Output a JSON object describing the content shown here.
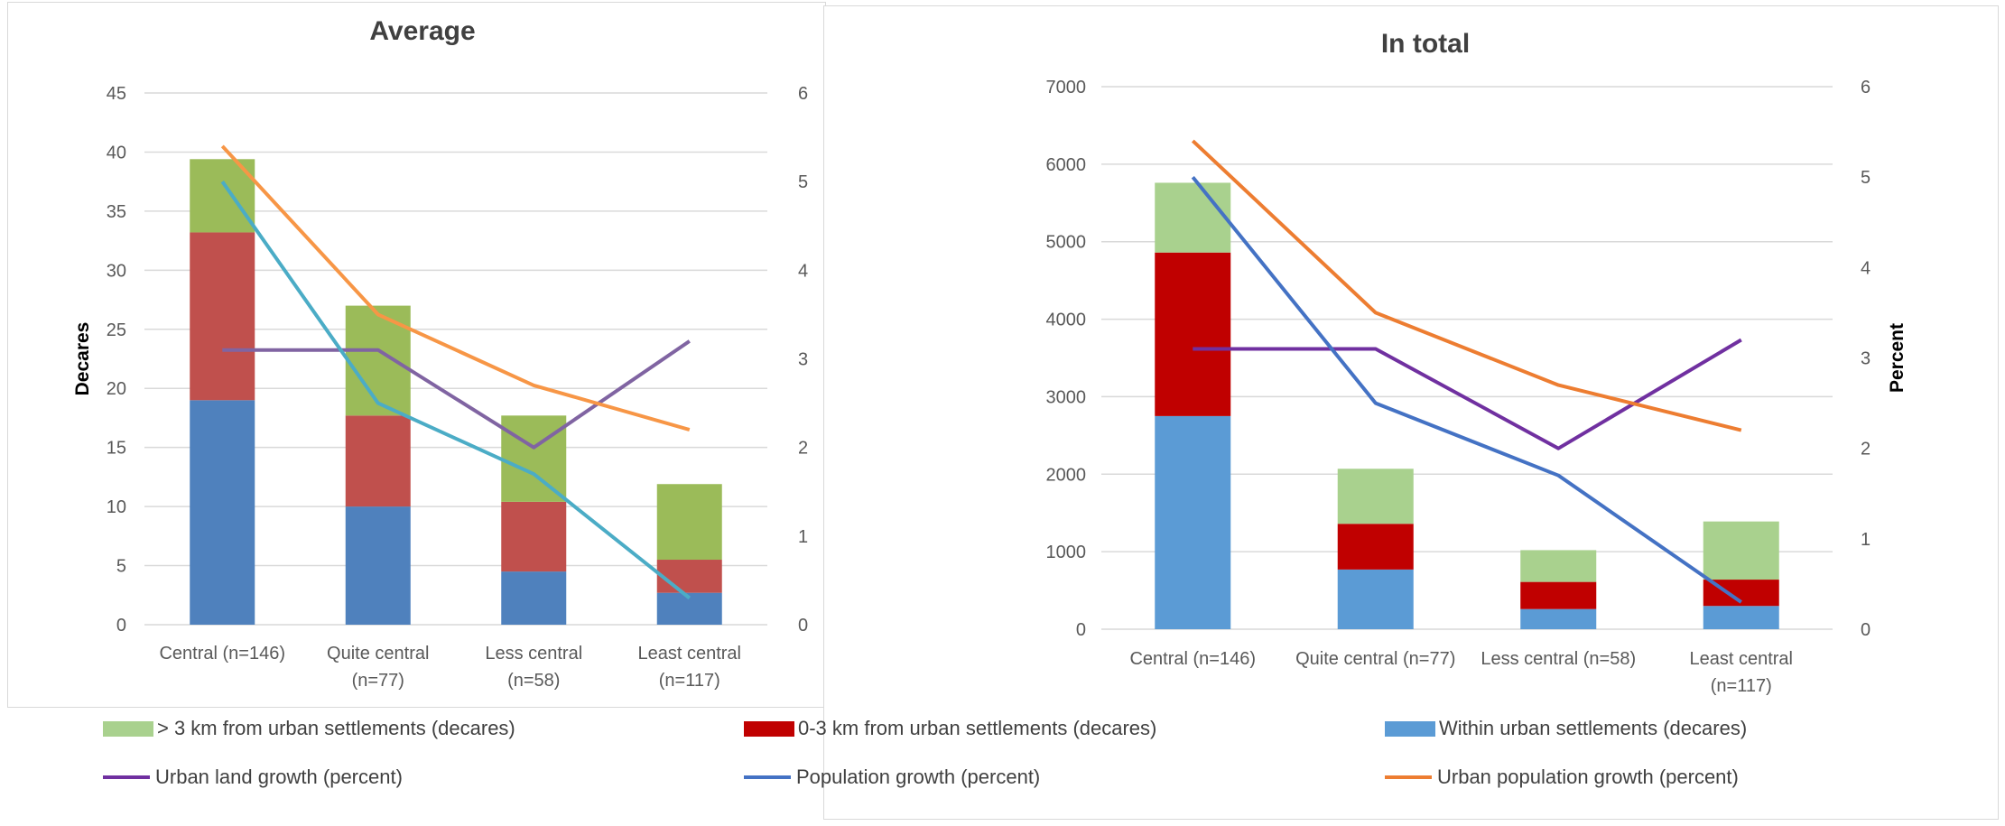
{
  "colors": {
    "far": "#9bbb59",
    "near": "#c0504d",
    "within": "#4f81bd",
    "land_growth": "#8064a2",
    "pop_growth": "#4bacc6",
    "urban_pop_growth": "#f79646",
    "far_right": "#a9d18e",
    "near_right": "#c00000",
    "within_right": "#5b9bd5",
    "land_growth_right": "#7030a0",
    "pop_growth_right": "#4472c4",
    "urban_pop_growth_right": "#ed7d31",
    "grid": "#d9d9d9",
    "axis_text": "#595959",
    "title_text": "#404040"
  },
  "legend": {
    "items": [
      {
        "label": "> 3 km from urban settlements (decares)",
        "kind": "box",
        "color": "#a9d18e"
      },
      {
        "label": "0-3 km from urban settlements (decares)",
        "kind": "box",
        "color": "#c00000"
      },
      {
        "label": "Within urban settlements (decares)",
        "kind": "box",
        "color": "#5b9bd5"
      },
      {
        "label": "Urban land growth (percent)",
        "kind": "line",
        "color": "#7030a0"
      },
      {
        "label": "Population growth (percent)",
        "kind": "line",
        "color": "#4472c4"
      },
      {
        "label": "Urban population growth (percent)",
        "kind": "line",
        "color": "#ed7d31"
      }
    ]
  },
  "chart_data": [
    {
      "type": "bar",
      "stacked": true,
      "title": "Average",
      "ylabel": "Decares",
      "y2label": "",
      "categories": [
        [
          "Central (n=146)"
        ],
        [
          "Quite central",
          "(n=77)"
        ],
        [
          "Less central",
          "(n=58)"
        ],
        [
          "Least central",
          "(n=117)"
        ]
      ],
      "ylim": [
        0,
        45
      ],
      "yticks": [
        0,
        5,
        10,
        15,
        20,
        25,
        30,
        35,
        40,
        45
      ],
      "y2lim": [
        0,
        6
      ],
      "y2ticks": [
        0,
        1,
        2,
        3,
        4,
        5,
        6
      ],
      "grid": true,
      "bar_series": [
        {
          "name": "Within urban settlements (decares)",
          "color": "#4f81bd",
          "values": [
            19,
            10,
            4.5,
            2.7
          ]
        },
        {
          "name": "0-3 km from urban settlements (decares)",
          "color": "#c0504d",
          "values": [
            14.2,
            7.7,
            5.9,
            2.8
          ]
        },
        {
          "name": "> 3 km from urban settlements (decares)",
          "color": "#9bbb59",
          "values": [
            6.2,
            9.3,
            7.3,
            6.4
          ]
        }
      ],
      "line_series": [
        {
          "name": "Urban land growth (percent)",
          "color": "#8064a2",
          "values": [
            3.1,
            3.1,
            2.0,
            3.2
          ]
        },
        {
          "name": "Population growth (percent)",
          "color": "#4bacc6",
          "values": [
            5.0,
            2.5,
            1.7,
            0.3
          ]
        },
        {
          "name": "Urban population growth (percent)",
          "color": "#f79646",
          "values": [
            5.4,
            3.5,
            2.7,
            2.2
          ]
        }
      ]
    },
    {
      "type": "bar",
      "stacked": true,
      "title": "In total",
      "ylabel": "",
      "y2label": "Percent",
      "categories": [
        [
          "Central (n=146)"
        ],
        [
          "Quite central (n=77)"
        ],
        [
          "Less central (n=58)"
        ],
        [
          "Least central",
          "(n=117)"
        ]
      ],
      "ylim": [
        0,
        7000
      ],
      "yticks": [
        0,
        1000,
        2000,
        3000,
        4000,
        5000,
        6000,
        7000
      ],
      "y2lim": [
        0,
        6
      ],
      "y2ticks": [
        0,
        1,
        2,
        3,
        4,
        5,
        6
      ],
      "grid": true,
      "bar_series": [
        {
          "name": "Within urban settlements (decares)",
          "color": "#5b9bd5",
          "values": [
            2750,
            770,
            260,
            300
          ]
        },
        {
          "name": "0-3 km from urban settlements (decares)",
          "color": "#c00000",
          "values": [
            2110,
            590,
            350,
            340
          ]
        },
        {
          "name": "> 3 km from urban settlements (decares)",
          "color": "#a9d18e",
          "values": [
            900,
            710,
            410,
            750
          ]
        }
      ],
      "line_series": [
        {
          "name": "Urban land growth (percent)",
          "color": "#7030a0",
          "values": [
            3.1,
            3.1,
            2.0,
            3.2
          ]
        },
        {
          "name": "Population growth (percent)",
          "color": "#4472c4",
          "values": [
            5.0,
            2.5,
            1.7,
            0.3
          ]
        },
        {
          "name": "Urban population growth (percent)",
          "color": "#ed7d31",
          "values": [
            5.4,
            3.5,
            2.7,
            2.2
          ]
        }
      ]
    }
  ]
}
